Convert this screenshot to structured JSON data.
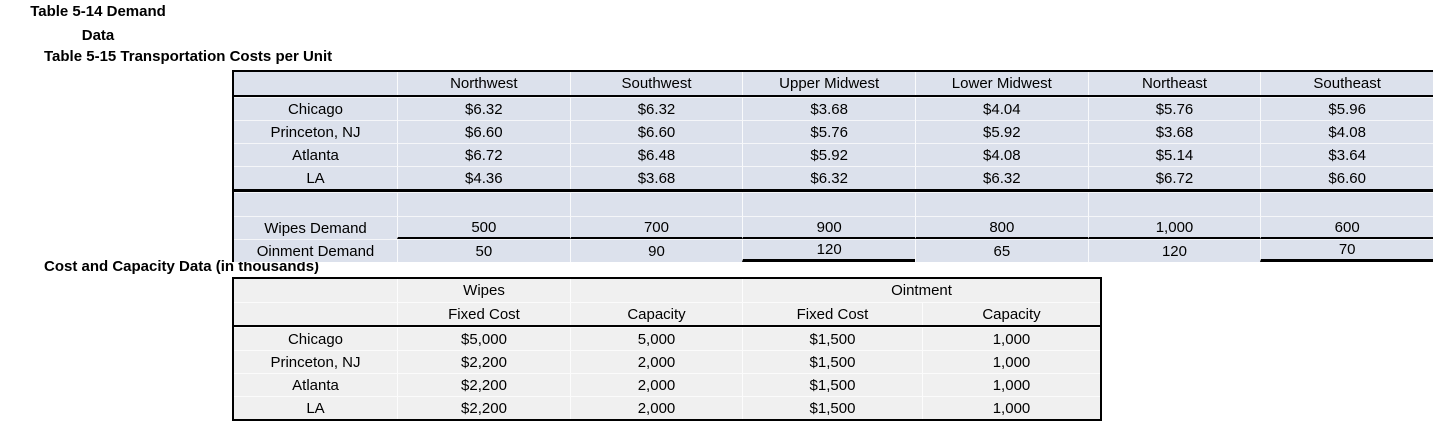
{
  "titles": {
    "transport": "Table 5-15 Transportation Costs per Unit",
    "demand_line1": "Table 5-14 Demand",
    "demand_line2": "Data",
    "capacity": "Cost and Capacity Data (in thousands)"
  },
  "colors": {
    "transport_table_fill": "#dce1ec",
    "capacity_table_fill": "#f0f0f0",
    "border": "#000000",
    "text": "#000000"
  },
  "transport_table": {
    "regions": [
      "Northwest",
      "Southwest",
      "Upper Midwest",
      "Lower Midwest",
      "Northeast",
      "Southeast"
    ],
    "rows": [
      {
        "label": "Chicago",
        "values": [
          "$6.32",
          "$6.32",
          "$3.68",
          "$4.04",
          "$5.76",
          "$5.96"
        ]
      },
      {
        "label": "Princeton, NJ",
        "values": [
          "$6.60",
          "$6.60",
          "$5.76",
          "$5.92",
          "$3.68",
          "$4.08"
        ]
      },
      {
        "label": "Atlanta",
        "values": [
          "$6.72",
          "$6.48",
          "$5.92",
          "$4.08",
          "$5.14",
          "$3.64"
        ]
      },
      {
        "label": "LA",
        "values": [
          "$4.36",
          "$3.68",
          "$6.32",
          "$6.32",
          "$6.72",
          "$6.60"
        ]
      }
    ]
  },
  "demand_table": {
    "rows": [
      {
        "label": "Wipes Demand",
        "values": [
          "500",
          "700",
          "900",
          "800",
          "1,000",
          "600"
        ]
      },
      {
        "label": "Oinment Demand",
        "values": [
          "50",
          "90",
          "120",
          "65",
          "120",
          "70"
        ]
      }
    ]
  },
  "capacity_table": {
    "group_headers": {
      "wipes": "Wipes",
      "ointment": "Ointment"
    },
    "col_headers": [
      "Fixed Cost",
      "Capacity",
      "Fixed Cost",
      "Capacity"
    ],
    "rows": [
      {
        "label": "Chicago",
        "values": [
          "$5,000",
          "5,000",
          "$1,500",
          "1,000"
        ]
      },
      {
        "label": "Princeton, NJ",
        "values": [
          "$2,200",
          "2,000",
          "$1,500",
          "1,000"
        ]
      },
      {
        "label": "Atlanta",
        "values": [
          "$2,200",
          "2,000",
          "$1,500",
          "1,000"
        ]
      },
      {
        "label": "LA",
        "values": [
          "$2,200",
          "2,000",
          "$1,500",
          "1,000"
        ]
      }
    ]
  }
}
